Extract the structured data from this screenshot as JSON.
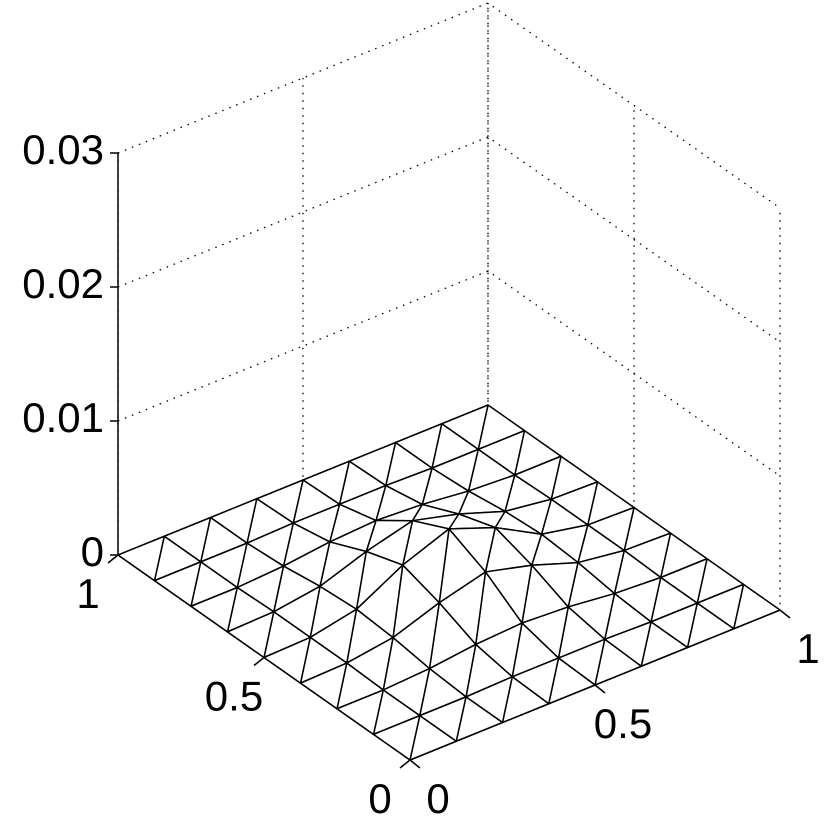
{
  "chart_data": {
    "type": "surface",
    "color": "#000000",
    "grid": true,
    "x": [
      0,
      0.125,
      0.25,
      0.375,
      0.5,
      0.625,
      0.75,
      0.875,
      1
    ],
    "y": [
      0,
      0.125,
      0.25,
      0.375,
      0.5,
      0.625,
      0.75,
      0.875,
      1
    ],
    "z": [
      [
        0,
        0,
        0,
        0,
        0,
        0,
        0,
        0,
        0
      ],
      [
        0,
        0,
        0,
        0.0001,
        0.0001,
        0.0001,
        0,
        0,
        0
      ],
      [
        0,
        0,
        0.0002,
        0.0006,
        0.0008,
        0.0006,
        0.0002,
        0,
        0
      ],
      [
        0,
        0.0001,
        0.0006,
        0.0018,
        0.0027,
        0.0018,
        0.0006,
        0.0001,
        0
      ],
      [
        0,
        0.0001,
        0.0008,
        0.0027,
        0.004,
        0.0027,
        0.0008,
        0.0001,
        0
      ],
      [
        0,
        0.0001,
        0.0006,
        0.0018,
        0.0027,
        0.0018,
        0.0006,
        0.0001,
        0
      ],
      [
        0,
        0,
        0.0002,
        0.0006,
        0.0008,
        0.0006,
        0.0002,
        0,
        0
      ],
      [
        0,
        0,
        0,
        0.0001,
        0.0001,
        0.0001,
        0,
        0,
        0
      ],
      [
        0,
        0,
        0,
        0,
        0,
        0,
        0,
        0,
        0
      ]
    ],
    "xlim": [
      0,
      1
    ],
    "ylim": [
      0,
      1
    ],
    "zlim": [
      0,
      0.03
    ],
    "xticks": [
      0,
      0.5,
      1
    ],
    "yticks": [
      0,
      0.5,
      1
    ],
    "zticks": [
      0,
      0.01,
      0.02,
      0.03
    ]
  }
}
